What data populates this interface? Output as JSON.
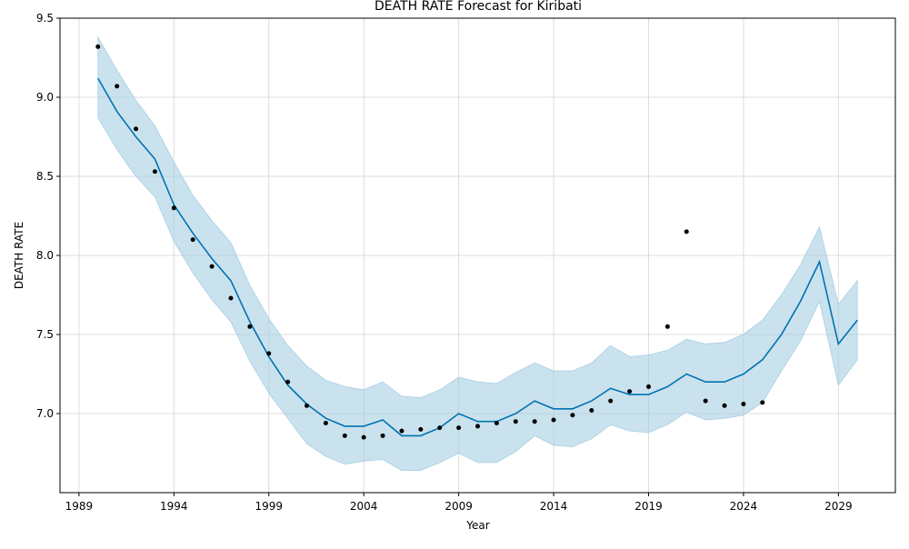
{
  "chart_data": {
    "type": "line",
    "title": "DEATH RATE Forecast for Kiribati",
    "xlabel": "Year",
    "ylabel": "DEATH RATE",
    "xlim": [
      1988,
      2032
    ],
    "ylim": [
      6.5,
      9.5
    ],
    "x_ticks": [
      1989,
      1994,
      1999,
      2004,
      2009,
      2014,
      2019,
      2024,
      2029
    ],
    "y_ticks": [
      7.0,
      7.5,
      8.0,
      8.5,
      9.0,
      9.5
    ],
    "grid": true,
    "colors": {
      "forecast": "#0072B2",
      "band": "#a6cee3",
      "observed": "#000000"
    },
    "series": [
      {
        "kind": "observed",
        "x": [
          1990,
          1991,
          1992,
          1993,
          1994,
          1995,
          1996,
          1997,
          1998,
          1999,
          2000,
          2001,
          2002,
          2003,
          2004,
          2005,
          2006,
          2007,
          2008,
          2009,
          2010,
          2011,
          2012,
          2013,
          2014,
          2015,
          2016,
          2017,
          2018,
          2019,
          2020,
          2021,
          2022,
          2023,
          2024,
          2025
        ],
        "y": [
          9.32,
          9.07,
          8.8,
          8.53,
          8.3,
          8.1,
          7.93,
          7.73,
          7.55,
          7.38,
          7.2,
          7.05,
          6.94,
          6.86,
          6.85,
          6.86,
          6.89,
          6.9,
          6.91,
          6.91,
          6.92,
          6.94,
          6.95,
          6.95,
          6.96,
          6.99,
          7.02,
          7.08,
          7.14,
          7.17,
          7.55,
          8.15,
          7.08,
          7.05,
          7.06,
          7.07
        ]
      },
      {
        "kind": "forecast",
        "x": [
          1990,
          1991,
          1992,
          1993,
          1994,
          1995,
          1996,
          1997,
          1998,
          1999,
          2000,
          2001,
          2002,
          2003,
          2004,
          2005,
          2006,
          2007,
          2008,
          2009,
          2010,
          2011,
          2012,
          2013,
          2014,
          2015,
          2016,
          2017,
          2018,
          2019,
          2020,
          2021,
          2022,
          2023,
          2024,
          2025,
          2026,
          2027,
          2028,
          2029,
          2030
        ],
        "y": [
          9.12,
          8.91,
          8.75,
          8.61,
          8.32,
          8.14,
          7.98,
          7.84,
          7.58,
          7.36,
          7.18,
          7.06,
          6.97,
          6.92,
          6.92,
          6.96,
          6.86,
          6.86,
          6.91,
          7.0,
          6.95,
          6.95,
          7.0,
          7.08,
          7.03,
          7.03,
          7.08,
          7.16,
          7.12,
          7.12,
          7.17,
          7.25,
          7.2,
          7.2,
          7.25,
          7.34,
          7.5,
          7.71,
          7.96,
          7.44,
          7.59
        ],
        "lower": [
          8.87,
          8.67,
          8.5,
          8.37,
          8.09,
          7.89,
          7.72,
          7.58,
          7.33,
          7.13,
          6.97,
          6.81,
          6.73,
          6.68,
          6.7,
          6.71,
          6.64,
          6.64,
          6.69,
          6.75,
          6.69,
          6.69,
          6.76,
          6.86,
          6.8,
          6.79,
          6.84,
          6.93,
          6.89,
          6.88,
          6.93,
          7.01,
          6.96,
          6.97,
          6.99,
          7.07,
          7.27,
          7.46,
          7.71,
          7.18,
          7.34
        ],
        "upper": [
          9.38,
          9.17,
          8.98,
          8.82,
          8.59,
          8.38,
          8.22,
          8.08,
          7.81,
          7.6,
          7.43,
          7.3,
          7.21,
          7.17,
          7.15,
          7.2,
          7.11,
          7.1,
          7.15,
          7.23,
          7.2,
          7.19,
          7.26,
          7.32,
          7.27,
          7.27,
          7.32,
          7.43,
          7.36,
          7.37,
          7.4,
          7.47,
          7.44,
          7.45,
          7.5,
          7.59,
          7.75,
          7.94,
          8.18,
          7.69,
          7.84
        ]
      }
    ]
  }
}
